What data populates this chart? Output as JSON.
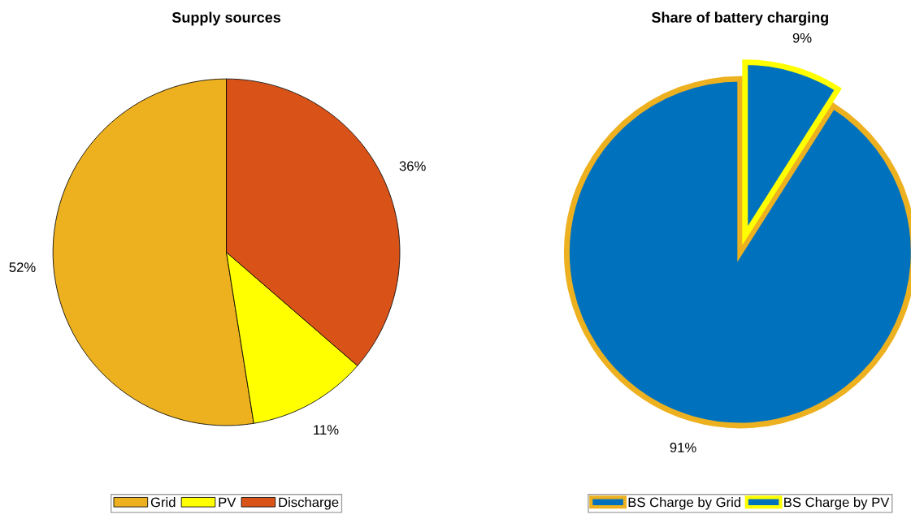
{
  "chart_data": [
    {
      "type": "pie",
      "title": "Supply sources",
      "categories": [
        "Grid",
        "PV",
        "Discharge"
      ],
      "values": [
        52,
        11,
        36
      ],
      "colors": [
        "#edb120",
        "#ffff00",
        "#d95319"
      ],
      "value_labels": [
        "52%",
        "11%",
        "36%"
      ],
      "legend": "bottom"
    },
    {
      "type": "pie",
      "title": "Share of battery charging",
      "categories": [
        "BS Charge by Grid",
        "BS Charge by PV"
      ],
      "values": [
        91,
        9
      ],
      "colors": [
        "#0072bd",
        "#0072bd"
      ],
      "value_labels": [
        "91%",
        "9%"
      ],
      "legend": "bottom"
    }
  ]
}
